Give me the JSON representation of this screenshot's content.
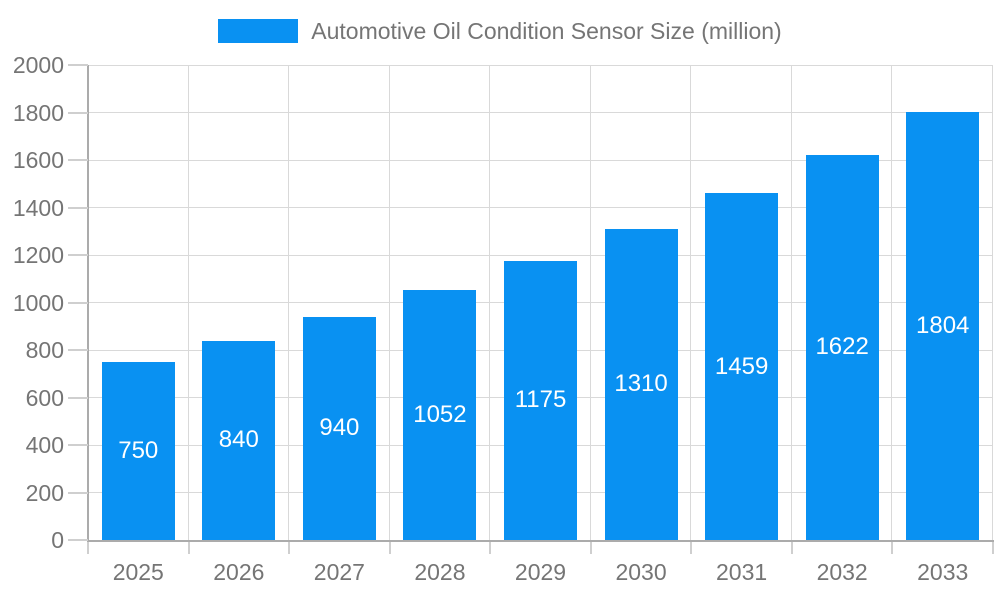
{
  "chart": {
    "legend": {
      "label": "Automotive Oil Condition Sensor Size (million)"
    },
    "colors": {
      "bar": "#0991f2",
      "text": "#757575",
      "bar_label": "#ffffff",
      "grid": "#d9d9d9",
      "axis": "#ababab",
      "tick": "#cfcfcf",
      "background": "#ffffff"
    }
  },
  "chart_data": {
    "type": "bar",
    "title": "Automotive Oil Condition Sensor Size (million)",
    "series_name": "Automotive Oil Condition Sensor Size (million)",
    "categories": [
      "2025",
      "2026",
      "2027",
      "2028",
      "2029",
      "2030",
      "2031",
      "2032",
      "2033"
    ],
    "values": [
      750,
      840,
      940,
      1052,
      1175,
      1310,
      1459,
      1622,
      1804
    ],
    "xlabel": "",
    "ylabel": "",
    "ylim": [
      0,
      2000
    ],
    "ytick_step": 200,
    "grid": true,
    "legend_position": "top",
    "bar_label_position": "inside-center",
    "bar_color": "#0991f2"
  }
}
